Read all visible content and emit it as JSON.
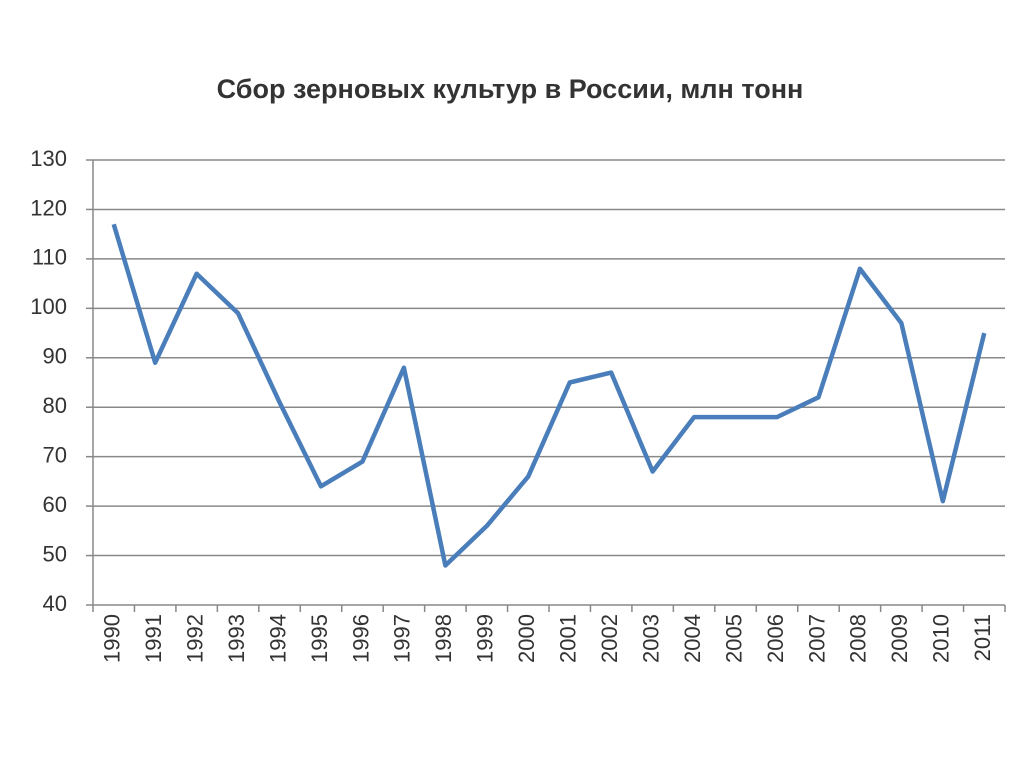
{
  "chart_data": {
    "type": "line",
    "title": "Сбор зерновых культур в России, млн тонн",
    "categories": [
      "1990",
      "1991",
      "1992",
      "1993",
      "1994",
      "1995",
      "1996",
      "1997",
      "1998",
      "1999",
      "2000",
      "2001",
      "2002",
      "2003",
      "2004",
      "2005",
      "2006",
      "2007",
      "2008",
      "2009",
      "2010",
      "2011"
    ],
    "values": [
      117,
      89,
      107,
      99,
      81,
      64,
      69,
      88,
      48,
      56,
      66,
      85,
      87,
      67,
      78,
      78,
      78,
      82,
      108,
      97,
      61,
      95
    ],
    "color": "#4a7ebb",
    "ylim": [
      40,
      130
    ],
    "yticks": [
      40,
      50,
      60,
      70,
      80,
      90,
      100,
      110,
      120,
      130
    ],
    "grid": true
  }
}
